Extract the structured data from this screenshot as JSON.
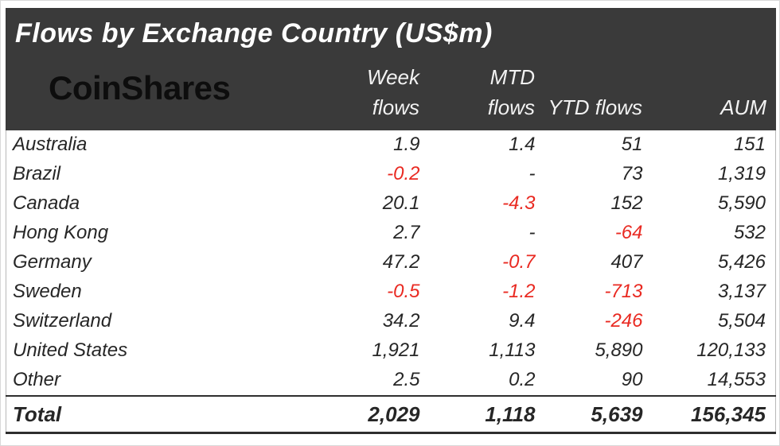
{
  "header": {
    "title": "Flows by Exchange Country (US$m)",
    "logo": "CoinShares",
    "columns": [
      {
        "line1": "Week",
        "line2": "flows"
      },
      {
        "line1": "MTD",
        "line2": "flows"
      },
      {
        "line1": "",
        "line2": "YTD flows"
      },
      {
        "line1": "",
        "line2": "AUM"
      }
    ]
  },
  "table": {
    "rows": [
      {
        "country": "Australia",
        "week": "1.9",
        "mtd": "1.4",
        "ytd": "51",
        "aum": "151"
      },
      {
        "country": "Brazil",
        "week": "-0.2",
        "mtd": "-",
        "ytd": "73",
        "aum": "1,319"
      },
      {
        "country": "Canada",
        "week": "20.1",
        "mtd": "-4.3",
        "ytd": "152",
        "aum": "5,590"
      },
      {
        "country": "Hong Kong",
        "week": "2.7",
        "mtd": "-",
        "ytd": "-64",
        "aum": "532"
      },
      {
        "country": "Germany",
        "week": "47.2",
        "mtd": "-0.7",
        "ytd": "407",
        "aum": "5,426"
      },
      {
        "country": "Sweden",
        "week": "-0.5",
        "mtd": "-1.2",
        "ytd": "-713",
        "aum": "3,137"
      },
      {
        "country": "Switzerland",
        "week": "34.2",
        "mtd": "9.4",
        "ytd": "-246",
        "aum": "5,504"
      },
      {
        "country": "United States",
        "week": "1,921",
        "mtd": "1,113",
        "ytd": "5,890",
        "aum": "120,133"
      },
      {
        "country": "Other",
        "week": "2.5",
        "mtd": "0.2",
        "ytd": "90",
        "aum": "14,553"
      }
    ],
    "total": {
      "country": "Total",
      "week": "2,029",
      "mtd": "1,118",
      "ytd": "5,639",
      "aum": "156,345"
    }
  },
  "colors": {
    "header_background": "#3a3a3a",
    "title_text": "#ffffff",
    "logo_text": "#0d0d0d",
    "body_text": "#262626",
    "negative_value": "#e92a22"
  },
  "chart_data": {
    "type": "table",
    "title": "Flows by Exchange Country (US$m)",
    "columns": [
      "Country",
      "Week flows",
      "MTD flows",
      "YTD flows",
      "AUM"
    ],
    "rows": [
      [
        "Australia",
        1.9,
        1.4,
        51,
        151
      ],
      [
        "Brazil",
        -0.2,
        null,
        73,
        1319
      ],
      [
        "Canada",
        20.1,
        -4.3,
        152,
        5590
      ],
      [
        "Hong Kong",
        2.7,
        null,
        -64,
        532
      ],
      [
        "Germany",
        47.2,
        -0.7,
        407,
        5426
      ],
      [
        "Sweden",
        -0.5,
        -1.2,
        -713,
        3137
      ],
      [
        "Switzerland",
        34.2,
        9.4,
        -246,
        5504
      ],
      [
        "United States",
        1921,
        1113,
        5890,
        120133
      ],
      [
        "Other",
        2.5,
        0.2,
        90,
        14553
      ],
      [
        "Total",
        2029,
        1118,
        5639,
        156345
      ]
    ],
    "notes": "Negative flow values rendered in red; null shown as dash"
  }
}
